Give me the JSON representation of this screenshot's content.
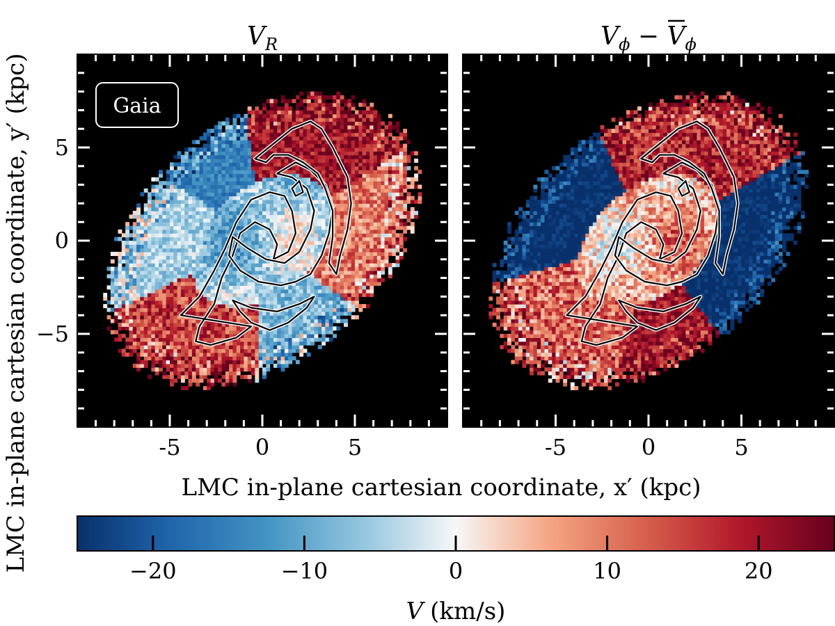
{
  "chart_data": {
    "type": "heatmap",
    "panels": [
      {
        "id": "vr",
        "title": "V_R",
        "xlim": [
          -10,
          10
        ],
        "ylim": [
          -10,
          10
        ],
        "xticks": [
          -5,
          0,
          5
        ],
        "yticks": [
          -5,
          0,
          5
        ],
        "badge": "Gaia",
        "bands": [
          {
            "angle_deg": 30,
            "mean": 20,
            "jitter": 7
          },
          {
            "angle_deg": 85,
            "mean": -15,
            "jitter": 4
          },
          {
            "angle_deg": 130,
            "mean": -5,
            "jitter": 5
          },
          {
            "angle_deg": 200,
            "mean": 15,
            "jitter": 8
          },
          {
            "angle_deg": 255,
            "mean": -8,
            "jitter": 6
          },
          {
            "angle_deg": 315,
            "mean": 10,
            "jitter": 7
          }
        ],
        "inner_core": {
          "mean": -6,
          "jitter": 6,
          "radius_frac": 0.45
        }
      },
      {
        "id": "vphi",
        "title": "V_phi - mean(V_phi)",
        "xlim": [
          -10,
          10
        ],
        "ylim": [
          -10,
          10
        ],
        "xticks": [
          -5,
          0,
          5
        ],
        "yticks": [
          -5,
          0,
          5
        ],
        "bands": [
          {
            "angle_deg": 40,
            "mean": 18,
            "jitter": 8
          },
          {
            "angle_deg": 110,
            "mean": -25,
            "jitter": 3
          },
          {
            "angle_deg": 200,
            "mean": 12,
            "jitter": 9
          },
          {
            "angle_deg": 235,
            "mean": 20,
            "jitter": 6
          },
          {
            "angle_deg": 300,
            "mean": -25,
            "jitter": 3
          }
        ],
        "inner_core": {
          "mean": 6,
          "jitter": 8,
          "radius_frac": 0.45
        }
      }
    ],
    "disk_ellipse": {
      "center": [
        0,
        0
      ],
      "semi_major": 9.6,
      "semi_minor": 6.4,
      "angle_deg": 40
    },
    "colorbar": {
      "label_var": "V",
      "label_unit": "(km/s)",
      "vmin": -25,
      "vmax": 25,
      "ticks": [
        -20,
        -10,
        0,
        10,
        20
      ],
      "colormap": "RdBu_r",
      "stops": [
        "#08306b",
        "#2166ac",
        "#4393c3",
        "#92c5de",
        "#f7f7f7",
        "#f4a582",
        "#d6604d",
        "#b2182b",
        "#67001f"
      ]
    },
    "xlabel": "LMC in-plane cartesian coordinate, x′ (kpc)",
    "ylabel": "LMC in-plane cartesian coordinate, y′ (kpc)",
    "contours": [
      {
        "panel": "both",
        "points": [
          [
            -4.4,
            -4
          ],
          [
            -3.4,
            -3
          ],
          [
            -2.6,
            -1.6
          ],
          [
            -2,
            -0.4
          ],
          [
            -1.4,
            1
          ],
          [
            -0.6,
            2.2
          ],
          [
            0.4,
            2.6
          ],
          [
            1.2,
            2.4
          ],
          [
            1.6,
            1.6
          ],
          [
            1.8,
            0.4
          ],
          [
            1.4,
            -0.6
          ],
          [
            0.6,
            -1
          ],
          [
            0.8,
            -0.2
          ],
          [
            0.4,
            0.6
          ],
          [
            -0.4,
            1
          ],
          [
            -1.2,
            0.4
          ],
          [
            -1.6,
            -0.8
          ],
          [
            -2.2,
            -2
          ],
          [
            -2.6,
            -3.4
          ],
          [
            -3.4,
            -4.6
          ],
          [
            -3.6,
            -5.4
          ],
          [
            -2.8,
            -5.6
          ],
          [
            -1.4,
            -5.2
          ],
          [
            -0.6,
            -4.6
          ]
        ]
      },
      {
        "panel": "both",
        "points": [
          [
            -1.8,
            -0.8
          ],
          [
            -1.2,
            -1.6
          ],
          [
            -0.2,
            -2.2
          ],
          [
            1,
            -2.4
          ],
          [
            1.8,
            -2.2
          ],
          [
            2.6,
            -1.8
          ],
          [
            3.2,
            -0.8
          ],
          [
            3.6,
            0.4
          ],
          [
            3.8,
            1.8
          ],
          [
            3.4,
            3
          ],
          [
            2.6,
            3.8
          ],
          [
            1.8,
            4.2
          ],
          [
            0.8,
            3.6
          ],
          [
            1.6,
            3.4
          ],
          [
            2.4,
            2.8
          ],
          [
            2.8,
            1.6
          ],
          [
            2.6,
            0.6
          ],
          [
            2,
            -0.6
          ],
          [
            1.2,
            -1.2
          ],
          [
            0.2,
            -1
          ],
          [
            -0.8,
            -0.4
          ],
          [
            -1.6,
            0.2
          ]
        ]
      },
      {
        "panel": "both",
        "points": [
          [
            -1.6,
            -3.2
          ],
          [
            -0.6,
            -3.6
          ],
          [
            0.8,
            -3.8
          ],
          [
            2,
            -3.4
          ],
          [
            2.8,
            -3
          ],
          [
            2.4,
            -3.6
          ],
          [
            1.4,
            -4.4
          ],
          [
            0.4,
            -4.8
          ],
          [
            -0.6,
            -4.4
          ],
          [
            -1.2,
            -3.8
          ]
        ]
      },
      {
        "panel": "both",
        "points": [
          [
            -0.4,
            4.4
          ],
          [
            0.6,
            5.2
          ],
          [
            1.6,
            6
          ],
          [
            2.6,
            6.4
          ],
          [
            3.2,
            6
          ],
          [
            3.8,
            5
          ],
          [
            4.6,
            3.4
          ],
          [
            4.8,
            2
          ],
          [
            4.6,
            0.6
          ],
          [
            4.2,
            -0.8
          ],
          [
            4,
            -1.8
          ],
          [
            3.6,
            -1.2
          ],
          [
            3.8,
            0.2
          ],
          [
            3.8,
            1.6
          ],
          [
            3.4,
            2.8
          ],
          [
            3,
            3.6
          ],
          [
            2.2,
            4.2
          ],
          [
            1.4,
            4.6
          ],
          [
            0.6,
            4.6
          ],
          [
            0.2,
            4.2
          ]
        ]
      },
      {
        "panel": "both",
        "points": [
          [
            1.6,
            2.8
          ],
          [
            2,
            3.2
          ],
          [
            2.2,
            2.6
          ],
          [
            1.8,
            2.4
          ]
        ]
      }
    ]
  }
}
